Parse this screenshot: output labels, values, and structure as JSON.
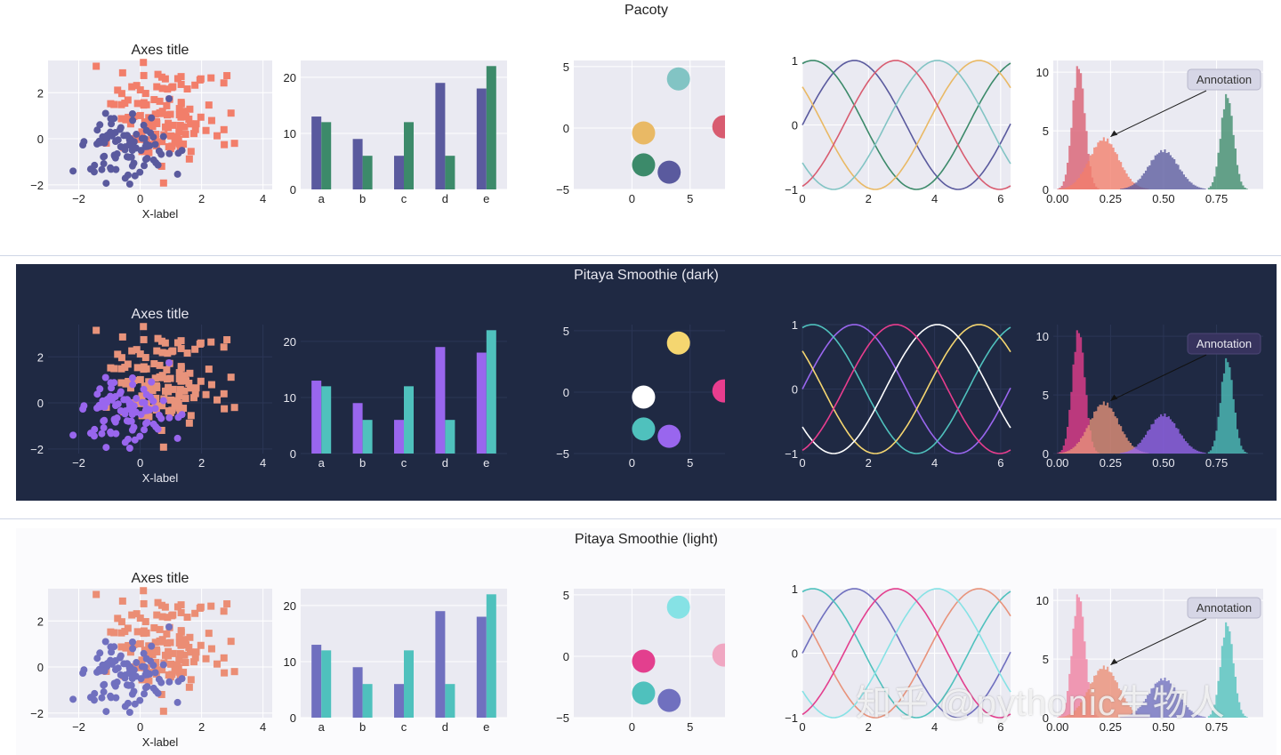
{
  "rows": [
    {
      "title": "Pacoty",
      "theme": {
        "bg": "#ffffff",
        "panel": "#eaeaf2",
        "grid": "#ffffff",
        "text": "#222222",
        "scatter": [
          "#5a5a9e",
          "#f27e6a"
        ],
        "bars": [
          "#5a5a9e",
          "#3c8a6a"
        ],
        "circles": [
          "#82c4c4",
          "#e9b965",
          "#3c8a6a",
          "#5a5a9e",
          "#d85c70"
        ],
        "lines": [
          "#5a5a9e",
          "#3c8a6a",
          "#e9b965",
          "#82c4c4",
          "#d85c70"
        ],
        "hist": [
          "#d85c70",
          "#f27e6a",
          "#5a5a9e",
          "#3c8a6a"
        ],
        "annot_bg": "#d6d6e6",
        "annot_border": "#b8b8cc",
        "annot_text": "#333333",
        "arrow": "#222222"
      }
    },
    {
      "title": "Pitaya Smoothie (dark)",
      "theme": {
        "bg": "#1f2943",
        "panel": "#1f2943",
        "grid": "#2b3656",
        "text": "#e8e8f0",
        "scatter": [
          "#9966ee",
          "#e8937b"
        ],
        "bars": [
          "#9966ee",
          "#4fc1bd"
        ],
        "circles": [
          "#f5d670",
          "#ffffff",
          "#4fc1bd",
          "#9966ee",
          "#e83d8e"
        ],
        "lines": [
          "#9966ee",
          "#4fc1bd",
          "#f5d670",
          "#ffffff",
          "#e83d8e"
        ],
        "hist": [
          "#e83d8e",
          "#e8937b",
          "#9966ee",
          "#4fc1bd"
        ],
        "annot_bg": "#37335e",
        "annot_border": "#4c4676",
        "annot_text": "#e8e8f0",
        "arrow": "#111111"
      }
    },
    {
      "title": "Pitaya Smoothie (light)",
      "theme": {
        "bg": "#fbfbfd",
        "panel": "#eaeaf2",
        "grid": "#ffffff",
        "text": "#222222",
        "scatter": [
          "#7070bf",
          "#eb8d74"
        ],
        "bars": [
          "#7070bf",
          "#4fc1bd"
        ],
        "circles": [
          "#86e2e5",
          "#e33f8e",
          "#4fc1bd",
          "#7070bf",
          "#f0a7c2"
        ],
        "lines": [
          "#7070bf",
          "#4fc1bd",
          "#e8937b",
          "#86e2e5",
          "#e33f8e"
        ],
        "hist": [
          "#f07fa0",
          "#eb8d74",
          "#7070bf",
          "#4fc1bd"
        ],
        "annot_bg": "#d6d6e6",
        "annot_border": "#b8b8cc",
        "annot_text": "#333333",
        "arrow": "#222222"
      }
    }
  ],
  "chart_data": [
    {
      "type": "scatter",
      "title": "Axes title",
      "xlabel": "X-label",
      "ylabel": "",
      "xlim": [
        -3,
        4.3
      ],
      "ylim": [
        -2.2,
        3.4
      ],
      "xticks": [
        "−2",
        "0",
        "2",
        "4"
      ],
      "yticks": [
        "−2",
        "0",
        "2"
      ],
      "series": [
        {
          "marker": "circle",
          "centers": [
            -0.5,
            -0.4
          ],
          "count": 95
        },
        {
          "marker": "square",
          "centers": [
            0.9,
            1.0
          ],
          "count": 130
        }
      ]
    },
    {
      "type": "bar",
      "categories": [
        "a",
        "b",
        "c",
        "d",
        "e"
      ],
      "series": [
        {
          "values": [
            13,
            9,
            6,
            19,
            18
          ]
        },
        {
          "values": [
            12,
            6,
            12,
            6,
            22
          ]
        }
      ],
      "ylim": [
        0,
        23
      ],
      "yticks": [
        "0",
        "10",
        "20"
      ]
    },
    {
      "type": "scatter",
      "subtype": "bubbles",
      "xlim": [
        -5,
        8
      ],
      "ylim": [
        -5,
        5.5
      ],
      "xticks": [
        "0",
        "5"
      ],
      "yticks": [
        "−5",
        "0",
        "5"
      ],
      "points": [
        {
          "x": 4,
          "y": 4
        },
        {
          "x": 1,
          "y": -0.4
        },
        {
          "x": 1,
          "y": -3
        },
        {
          "x": 3.2,
          "y": -3.6
        },
        {
          "x": 7.9,
          "y": 0.1
        }
      ]
    },
    {
      "type": "line",
      "xlim": [
        0,
        6.3
      ],
      "ylim": [
        -1,
        1
      ],
      "xticks": [
        "0",
        "2",
        "4",
        "6"
      ],
      "yticks": [
        "−1",
        "0",
        "1"
      ],
      "series": [
        {
          "func": "sin",
          "phase": 0
        },
        {
          "func": "sin",
          "phase": 1.26
        },
        {
          "func": "sin",
          "phase": 2.51
        },
        {
          "func": "sin",
          "phase": 3.77
        },
        {
          "func": "sin",
          "phase": 5.03
        }
      ]
    },
    {
      "type": "histogram",
      "xlim": [
        -0.02,
        0.97
      ],
      "ylim": [
        0,
        11
      ],
      "xticks": [
        "0.00",
        "0.25",
        "0.50",
        "0.75"
      ],
      "yticks": [
        "0",
        "5",
        "10"
      ],
      "annotation": {
        "text": "Annotation",
        "target_x": 0.25,
        "target_y": 4.5
      },
      "series": [
        {
          "mean": 0.1,
          "sd": 0.03,
          "peak": 10.5
        },
        {
          "mean": 0.22,
          "sd": 0.07,
          "peak": 4.3
        },
        {
          "mean": 0.5,
          "sd": 0.07,
          "peak": 3.3
        },
        {
          "mean": 0.8,
          "sd": 0.03,
          "peak": 8.0
        }
      ]
    }
  ],
  "watermark": "知乎 @pythonic生物人"
}
